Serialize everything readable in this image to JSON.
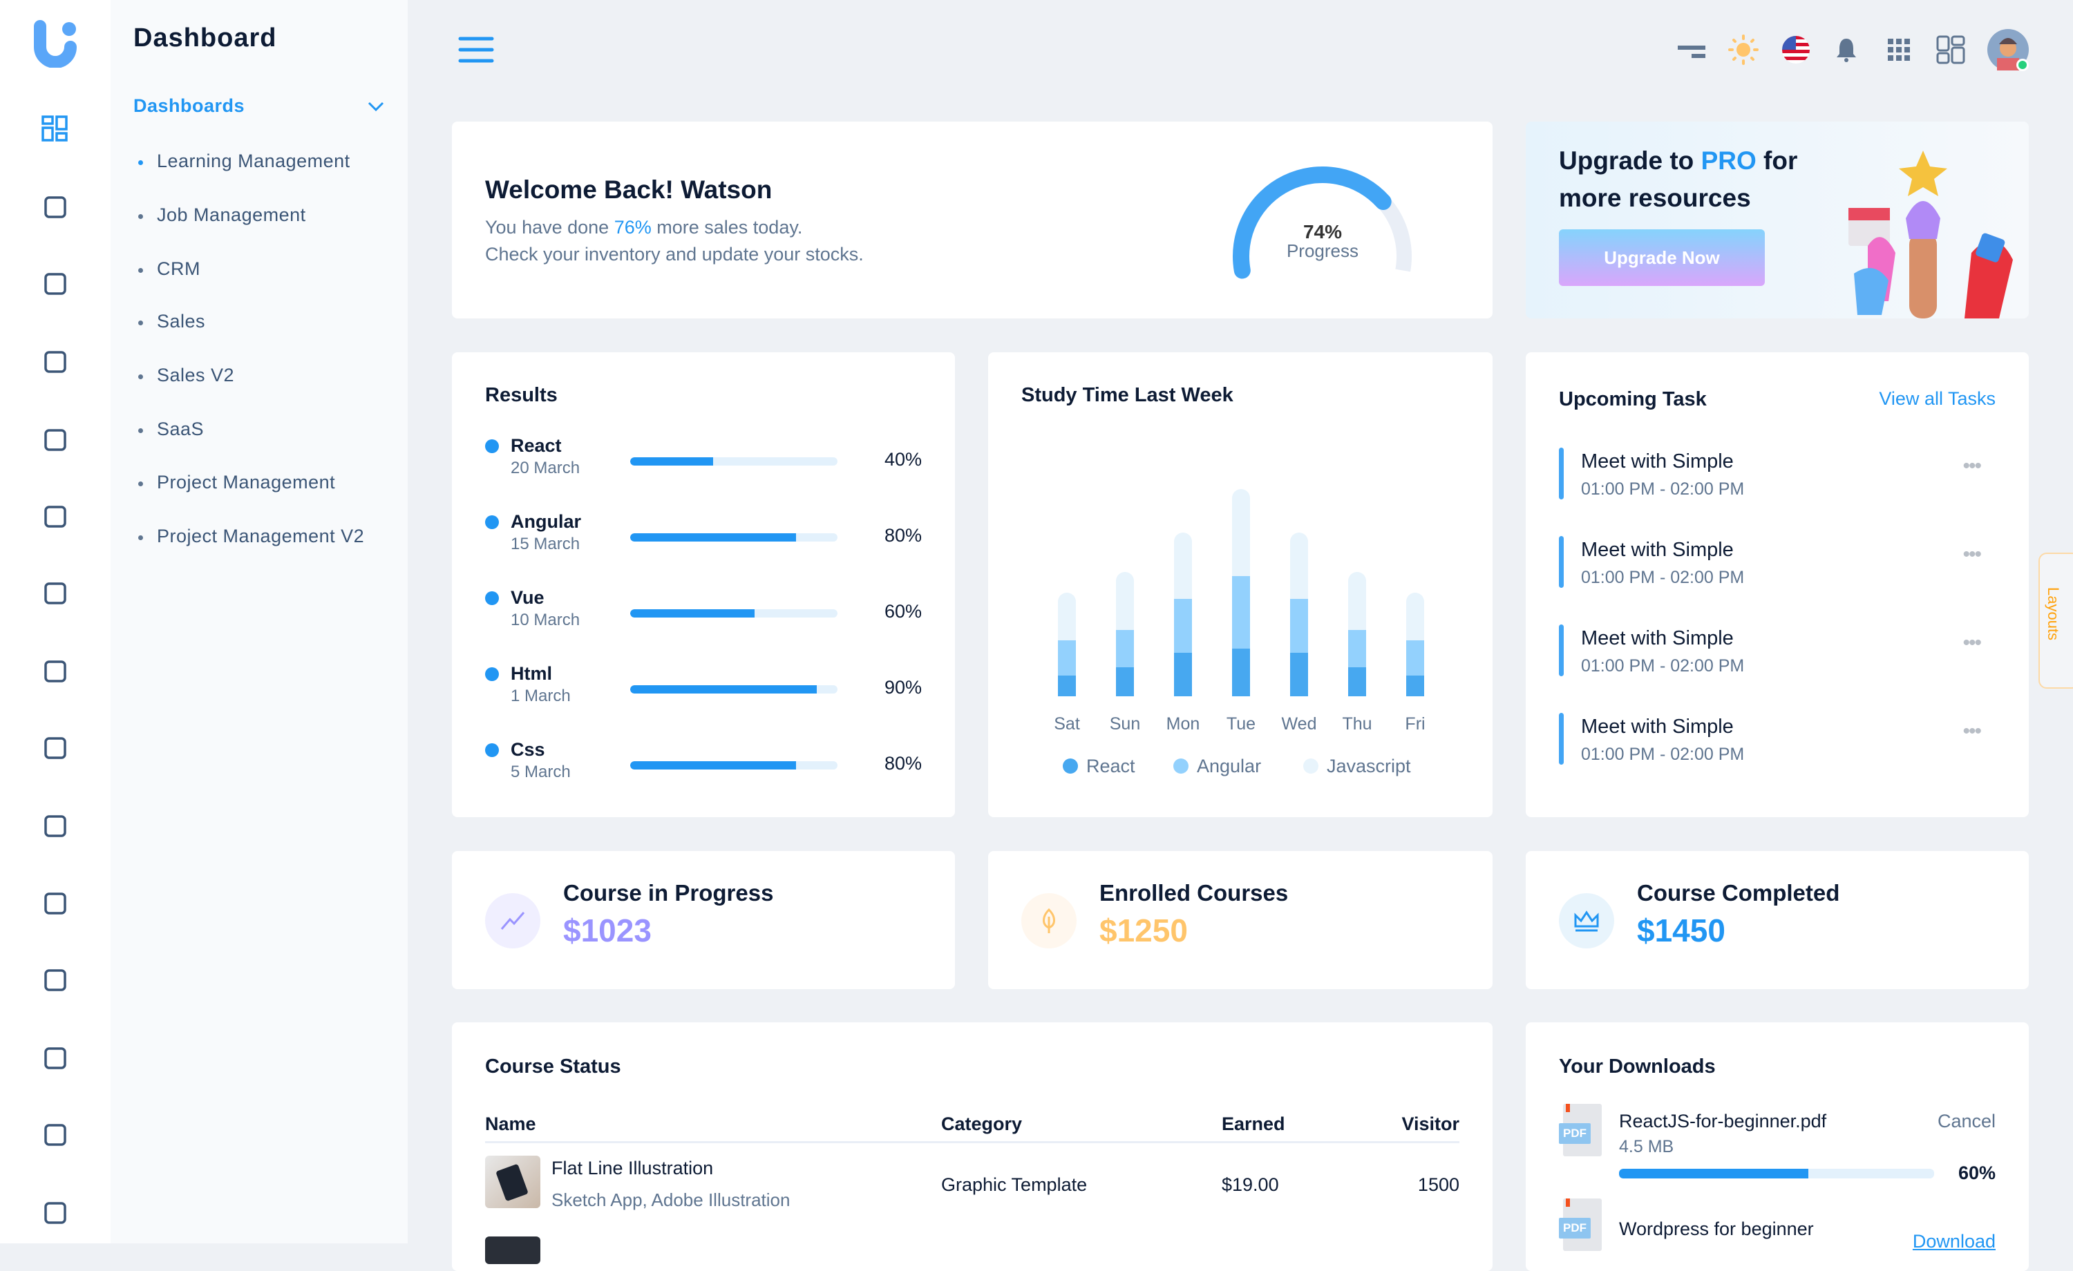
{
  "sidebar": {
    "title": "Dashboard",
    "group": "Dashboards",
    "items": [
      "Learning Management",
      "Job Management",
      "CRM",
      "Sales",
      "Sales V2",
      "SaaS",
      "Project Management",
      "Project Management V2"
    ],
    "rail_icons": [
      "dashboard-icon",
      "user-icon",
      "receipt-icon",
      "briefcase-icon",
      "basket-icon",
      "hexagon-eye-icon",
      "documents-icon",
      "hexagon-eye-icon",
      "table-icon",
      "list-icon",
      "rows-icon",
      "calendar-icon",
      "chat-icon",
      "shield-star-icon",
      "sidebar-icon"
    ]
  },
  "header": {
    "icons": [
      "filter-icon",
      "sun-icon",
      "us-flag-icon",
      "bell-icon",
      "apps-grid-icon",
      "layout-icon",
      "avatar"
    ]
  },
  "welcome": {
    "title": "Welcome Back! Watson",
    "line1_pre": "You have done ",
    "line1_highlight": "76%",
    "line1_post": " more sales today.",
    "line2": "Check your inventory and update your stocks.",
    "gauge_value": "74%",
    "gauge_percent": 74,
    "gauge_label": "Progress"
  },
  "upgrade": {
    "pre": "Upgrade to ",
    "highlight": "PRO",
    "post": " for",
    "line2": "more resources",
    "button": "Upgrade Now"
  },
  "results": {
    "title": "Results",
    "items": [
      {
        "name": "React",
        "date": "20 March",
        "label": "40%",
        "value": 40
      },
      {
        "name": "Angular",
        "date": "15 March",
        "label": "80%",
        "value": 80
      },
      {
        "name": "Vue",
        "date": "10 March",
        "label": "60%",
        "value": 60
      },
      {
        "name": "Html",
        "date": "1 March",
        "label": "90%",
        "value": 90
      },
      {
        "name": "Css",
        "date": "5 March",
        "label": "80%",
        "value": 80
      }
    ]
  },
  "chart_data": {
    "type": "bar",
    "stacked": true,
    "title": "Study Time Last Week",
    "categories": [
      "Sat",
      "Sun",
      "Mon",
      "Tue",
      "Wed",
      "Thu",
      "Fri"
    ],
    "series": [
      {
        "name": "React",
        "color": "#47a8f0",
        "values": [
          10,
          14,
          21,
          23,
          21,
          14,
          10
        ]
      },
      {
        "name": "Angular",
        "color": "#93d1fd",
        "values": [
          17,
          18,
          26,
          35,
          26,
          18,
          17
        ]
      },
      {
        "name": "Javascript",
        "color": "#e8f4fc",
        "values": [
          23,
          28,
          32,
          42,
          32,
          28,
          23
        ]
      }
    ],
    "ylim": [
      0,
      100
    ],
    "grid": false,
    "legend": "bottom"
  },
  "tasks": {
    "title": "Upcoming Task",
    "link": "View all Tasks",
    "items": [
      {
        "name": "Meet with Simple",
        "time": "01:00 PM - 02:00 PM"
      },
      {
        "name": "Meet with Simple",
        "time": "01:00 PM - 02:00 PM"
      },
      {
        "name": "Meet with Simple",
        "time": "01:00 PM - 02:00 PM"
      },
      {
        "name": "Meet with Simple",
        "time": "01:00 PM - 02:00 PM"
      }
    ]
  },
  "stats": [
    {
      "title": "Course in Progress",
      "value": "$1023",
      "color": "#9a94ff",
      "bg": "#f0efff",
      "icon": "trend-icon"
    },
    {
      "title": "Enrolled Courses",
      "value": "$1250",
      "color": "#ffc56b",
      "bg": "#fff7ee",
      "icon": "leaf-icon"
    },
    {
      "title": "Course Completed",
      "value": "$1450",
      "color": "#2196f3",
      "bg": "#e8f4fc",
      "icon": "crown-icon"
    }
  ],
  "course_status": {
    "title": "Course Status",
    "headers": [
      "Name",
      "Category",
      "Earned",
      "Visitor"
    ],
    "rows": [
      {
        "name": "Flat Line Illustration",
        "sub": "Sketch App, Adobe Illustration",
        "category": "Graphic Template",
        "earned": "$19.00",
        "visitor": "1500"
      }
    ]
  },
  "downloads": {
    "title": "Your Downloads",
    "items": [
      {
        "name": "ReactJS-for-beginner.pdf",
        "size": "4.5 MB",
        "action": "Cancel",
        "progress_label": "60%",
        "progress": 60
      },
      {
        "name": "Wordpress for beginner",
        "action": "Download"
      }
    ],
    "badge": "PDF"
  },
  "layouts_tab": "Layouts"
}
